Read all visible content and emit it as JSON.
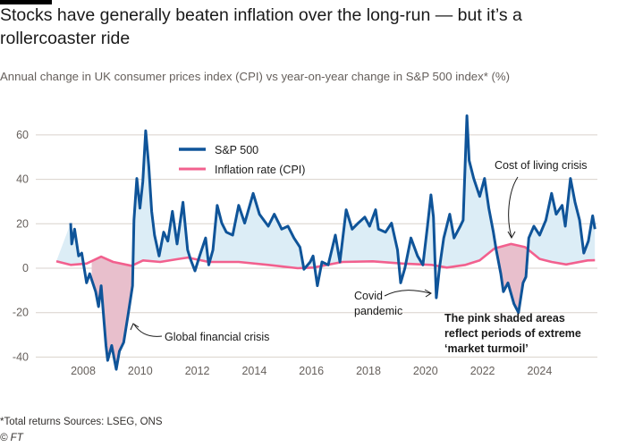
{
  "title": "Stocks have generally beaten inflation over the long-run — but it’s a rollercoaster ride",
  "subtitle": "Annual change in UK consumer prices index (CPI) vs year-on-year change in S&P 500 index* (%)",
  "footnote": "*Total returns   Sources: LSEG, ONS",
  "copyright": "© FT",
  "chart_data": {
    "type": "line",
    "xlim": [
      2007,
      2026
    ],
    "ylim": [
      -45,
      70
    ],
    "x_ticks": [
      2008,
      2010,
      2012,
      2014,
      2016,
      2018,
      2020,
      2022,
      2024
    ],
    "y_ticks": [
      -40,
      -20,
      0,
      20,
      40,
      60
    ],
    "grid": "horizontal",
    "legend_placement": "top-left",
    "colors": {
      "sp500": "#0f5499",
      "cpi": "#f2608e",
      "above_fill": "#dcedf6",
      "turmoil_fill": "#e8bfcc"
    },
    "series": [
      {
        "name": "S&P 500",
        "points": [
          [
            2007.56,
            20.3
          ],
          [
            2007.6,
            10.9
          ],
          [
            2007.7,
            17.6
          ],
          [
            2007.84,
            5.5
          ],
          [
            2007.95,
            6.8
          ],
          [
            2008.12,
            -6.6
          ],
          [
            2008.23,
            -2.5
          ],
          [
            2008.44,
            -10.6
          ],
          [
            2008.54,
            -17.3
          ],
          [
            2008.63,
            -7.9
          ],
          [
            2008.8,
            -34.8
          ],
          [
            2008.86,
            -41.5
          ],
          [
            2009.0,
            -34.8
          ],
          [
            2009.16,
            -45.5
          ],
          [
            2009.27,
            -37.4
          ],
          [
            2009.42,
            -33.4
          ],
          [
            2009.57,
            -21.3
          ],
          [
            2009.73,
            -7.9
          ],
          [
            2009.78,
            21.6
          ],
          [
            2009.88,
            40.4
          ],
          [
            2009.99,
            27
          ],
          [
            2010.09,
            39
          ],
          [
            2010.19,
            61.9
          ],
          [
            2010.3,
            45.8
          ],
          [
            2010.4,
            25.6
          ],
          [
            2010.5,
            14.9
          ],
          [
            2010.66,
            5.5
          ],
          [
            2010.82,
            16.2
          ],
          [
            2010.97,
            12.2
          ],
          [
            2011.13,
            25.6
          ],
          [
            2011.29,
            10.9
          ],
          [
            2011.5,
            29.7
          ],
          [
            2011.66,
            8.2
          ],
          [
            2011.76,
            4.2
          ],
          [
            2011.92,
            -1.2
          ],
          [
            2012.08,
            5.5
          ],
          [
            2012.29,
            13.6
          ],
          [
            2012.4,
            1.5
          ],
          [
            2012.55,
            8.2
          ],
          [
            2012.7,
            28.3
          ],
          [
            2012.86,
            20.3
          ],
          [
            2013.02,
            16.2
          ],
          [
            2013.24,
            14.9
          ],
          [
            2013.45,
            28.3
          ],
          [
            2013.66,
            20.3
          ],
          [
            2013.96,
            33.7
          ],
          [
            2014.18,
            24.3
          ],
          [
            2014.49,
            18.9
          ],
          [
            2014.7,
            24.3
          ],
          [
            2014.96,
            17.6
          ],
          [
            2015.18,
            18.9
          ],
          [
            2015.39,
            13.6
          ],
          [
            2015.6,
            9.5
          ],
          [
            2015.74,
            -0.5
          ],
          [
            2015.96,
            2.8
          ],
          [
            2016.06,
            5.5
          ],
          [
            2016.21,
            -7.9
          ],
          [
            2016.37,
            2.8
          ],
          [
            2016.59,
            1.5
          ],
          [
            2016.84,
            14.9
          ],
          [
            2017.0,
            2.8
          ],
          [
            2017.22,
            26.3
          ],
          [
            2017.43,
            17.6
          ],
          [
            2017.64,
            20.3
          ],
          [
            2017.87,
            23
          ],
          [
            2018.04,
            18.9
          ],
          [
            2018.25,
            26.3
          ],
          [
            2018.35,
            17.6
          ],
          [
            2018.6,
            16.2
          ],
          [
            2018.81,
            20.3
          ],
          [
            2019.02,
            8.2
          ],
          [
            2019.13,
            -6.6
          ],
          [
            2019.28,
            0.1
          ],
          [
            2019.49,
            13.6
          ],
          [
            2019.72,
            5.5
          ],
          [
            2019.91,
            1.5
          ],
          [
            2020.07,
            18.9
          ],
          [
            2020.19,
            33
          ],
          [
            2020.28,
            23
          ],
          [
            2020.38,
            -13.3
          ],
          [
            2020.49,
            0.1
          ],
          [
            2020.64,
            13.6
          ],
          [
            2020.85,
            24.3
          ],
          [
            2021.0,
            13.6
          ],
          [
            2021.22,
            18.9
          ],
          [
            2021.32,
            21.6
          ],
          [
            2021.45,
            68.6
          ],
          [
            2021.53,
            48.5
          ],
          [
            2021.69,
            40.4
          ],
          [
            2021.9,
            32.3
          ],
          [
            2022.07,
            40.4
          ],
          [
            2022.22,
            27
          ],
          [
            2022.38,
            16.2
          ],
          [
            2022.48,
            8.2
          ],
          [
            2022.64,
            -2.5
          ],
          [
            2022.73,
            -10.6
          ],
          [
            2022.89,
            -6.6
          ],
          [
            2023.1,
            -16
          ],
          [
            2023.26,
            -20
          ],
          [
            2023.42,
            -6.6
          ],
          [
            2023.52,
            -3.9
          ],
          [
            2023.62,
            13.6
          ],
          [
            2023.8,
            18.9
          ],
          [
            2024.0,
            14.9
          ],
          [
            2024.22,
            21.6
          ],
          [
            2024.42,
            33.7
          ],
          [
            2024.58,
            24.3
          ],
          [
            2024.79,
            28.3
          ],
          [
            2024.9,
            18.9
          ],
          [
            2025.08,
            40.4
          ],
          [
            2025.24,
            29.7
          ],
          [
            2025.4,
            21.6
          ],
          [
            2025.55,
            6.8
          ],
          [
            2025.71,
            12.2
          ],
          [
            2025.86,
            23.6
          ],
          [
            2025.94,
            17.6
          ]
        ]
      },
      {
        "name": "Inflation rate (CPI)",
        "points": [
          [
            2007.06,
            3.1
          ],
          [
            2007.56,
            1.5
          ],
          [
            2008.12,
            2.1
          ],
          [
            2008.63,
            5.2
          ],
          [
            2009.05,
            2.8
          ],
          [
            2009.7,
            1.1
          ],
          [
            2010.1,
            3.5
          ],
          [
            2010.7,
            2.8
          ],
          [
            2011.35,
            4.2
          ],
          [
            2011.67,
            4.8
          ],
          [
            2012.4,
            2.8
          ],
          [
            2013.45,
            2.8
          ],
          [
            2014.49,
            1.5
          ],
          [
            2015.52,
            0
          ],
          [
            2016.06,
            0.3
          ],
          [
            2017.09,
            2.8
          ],
          [
            2018.15,
            3.1
          ],
          [
            2019.2,
            2.1
          ],
          [
            2020.22,
            1.5
          ],
          [
            2020.75,
            0.3
          ],
          [
            2021.4,
            1.5
          ],
          [
            2021.9,
            3.5
          ],
          [
            2022.42,
            8.9
          ],
          [
            2023.0,
            10.9
          ],
          [
            2023.49,
            9.5
          ],
          [
            2024.0,
            4.2
          ],
          [
            2024.42,
            2.8
          ],
          [
            2024.93,
            1.7
          ],
          [
            2025.68,
            3.5
          ],
          [
            2025.94,
            3.6
          ]
        ]
      }
    ],
    "turmoil_periods": [
      [
        2008.3,
        2009.8
      ],
      [
        2022.4,
        2023.65
      ]
    ],
    "annotations": {
      "gfc": "Global financial crisis",
      "covid_1": "Covid",
      "covid_2": "pandemic",
      "col": "Cost of living crisis",
      "note_1": "The pink shaded areas",
      "note_2": "reflect periods of extreme",
      "note_3": "‘market turmoil’"
    }
  }
}
